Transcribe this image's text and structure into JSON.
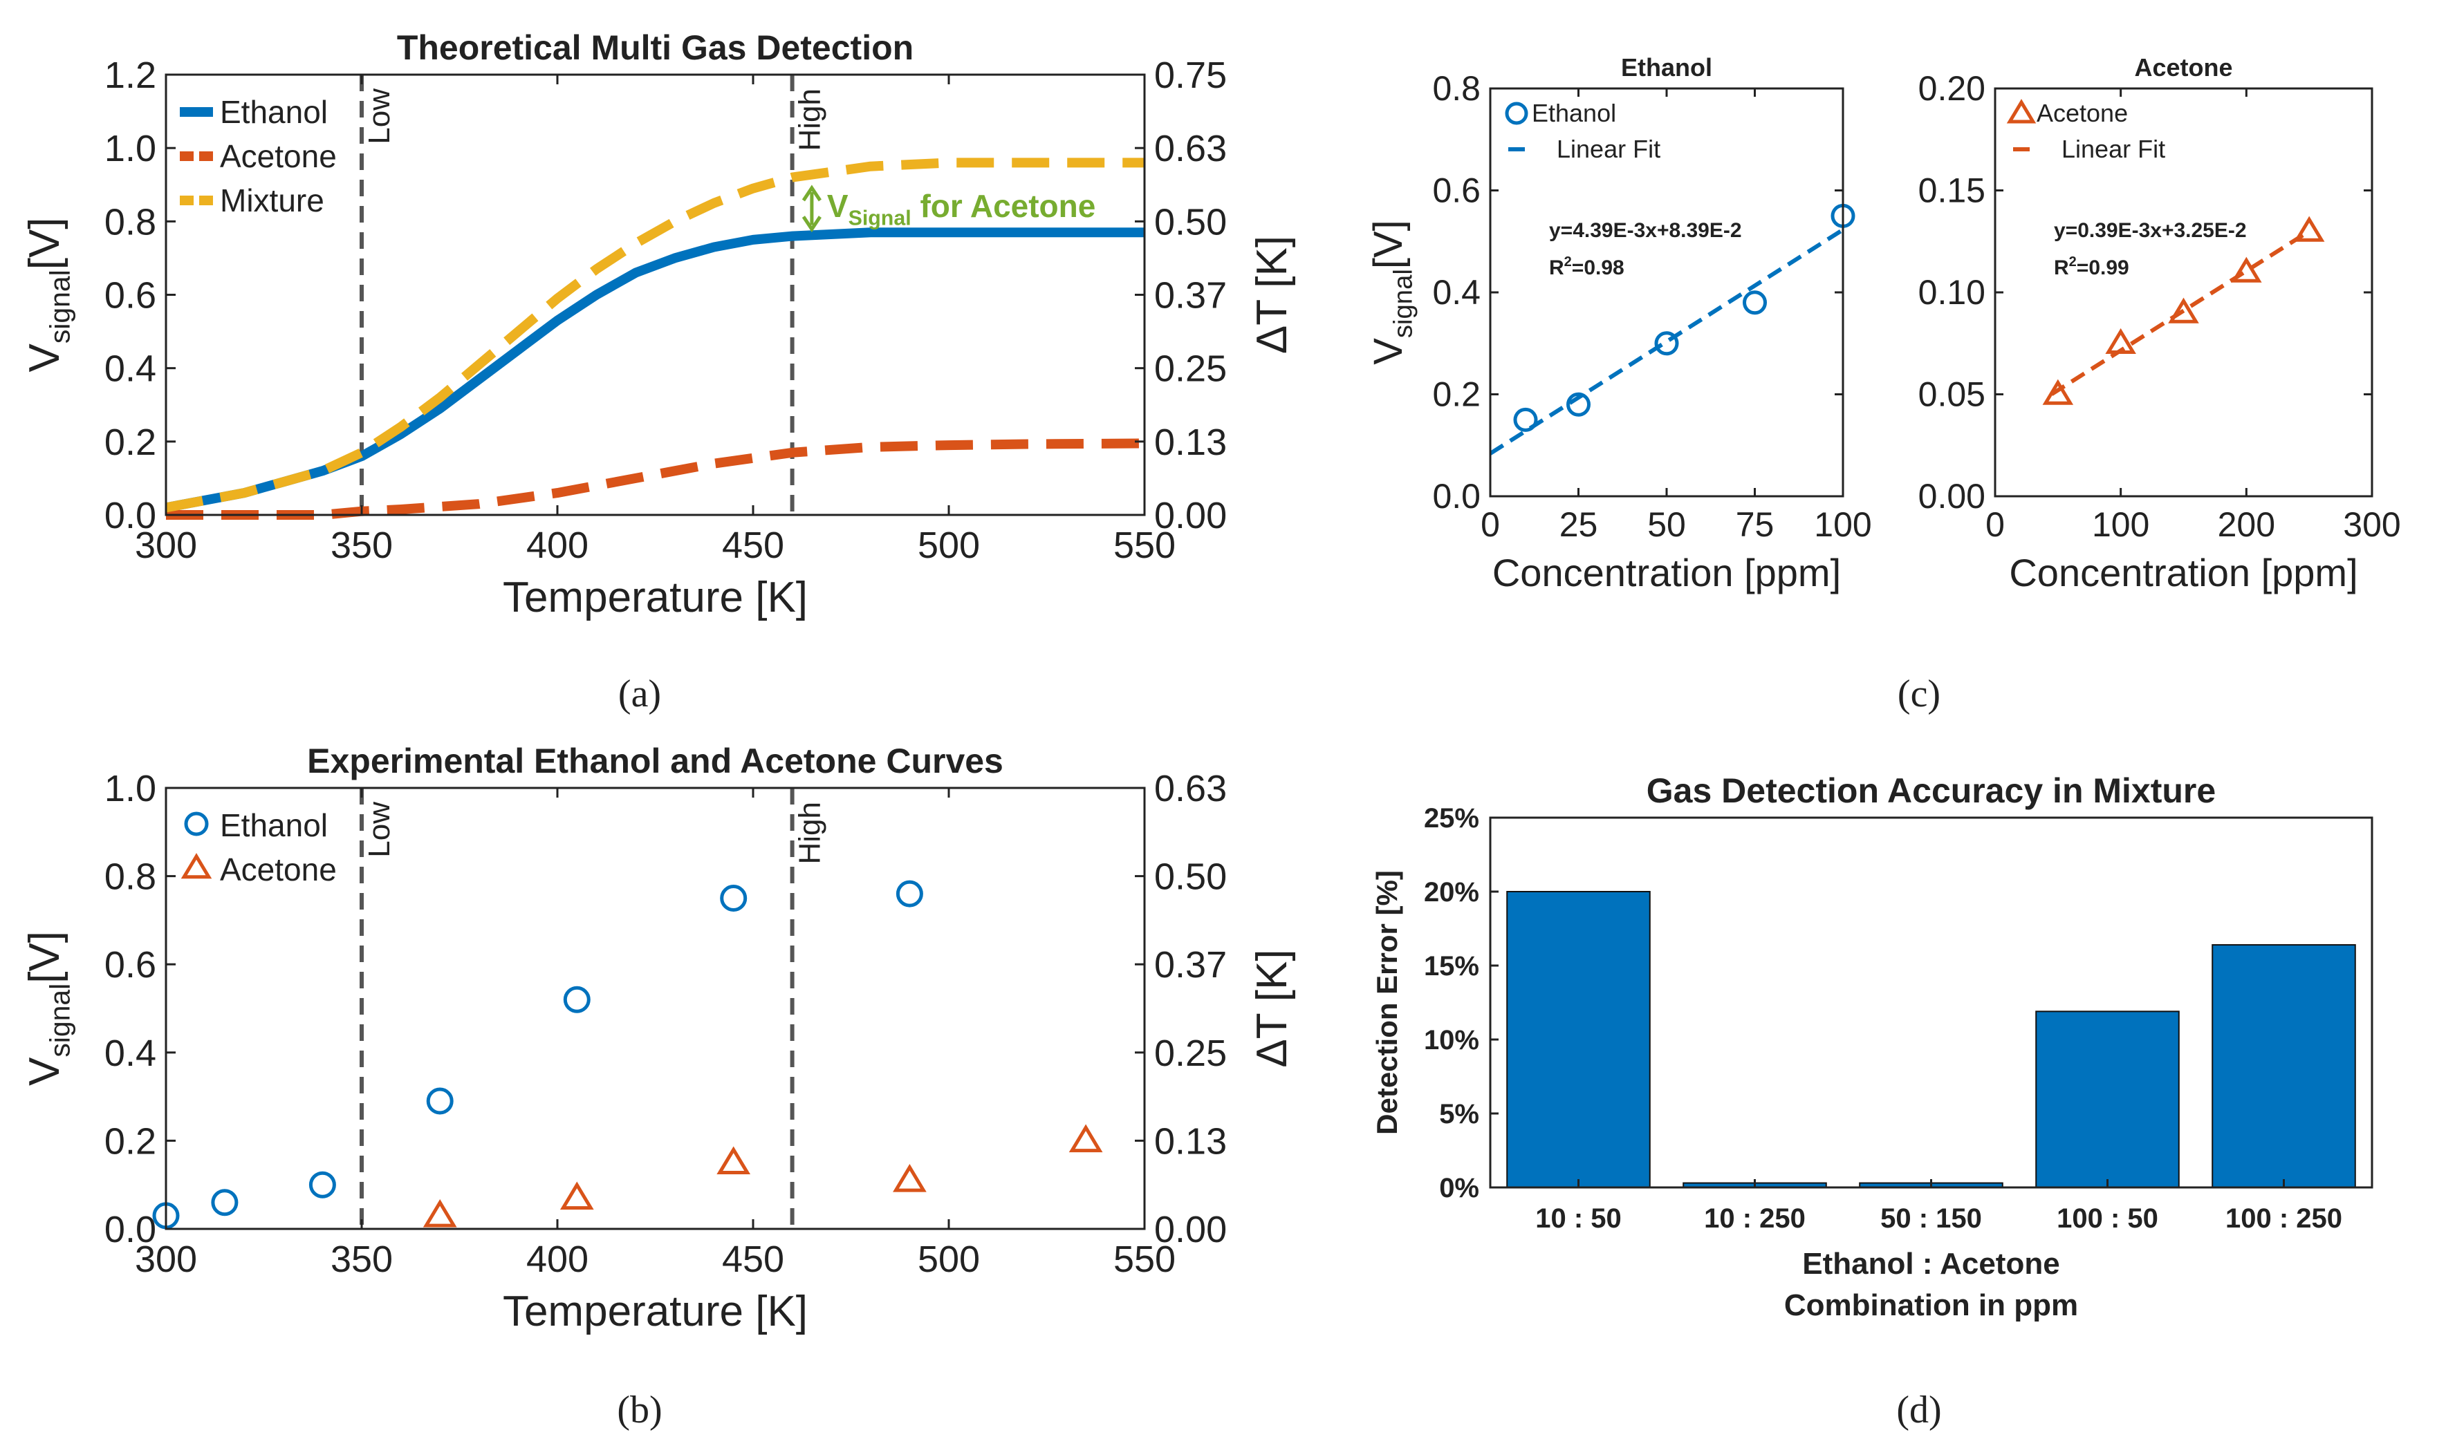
{
  "panel_labels": [
    "(a)",
    "(b)",
    "(c)",
    "(d)"
  ],
  "chart_data": [
    {
      "id": "a",
      "type": "line",
      "title": "Theoretical Multi Gas Detection",
      "xlabel": "Temperature [K]",
      "ylabel_main": "V",
      "ylabel_sub": "signal",
      "ylabel_unit": "[V]",
      "y2label": "ΔT [K]",
      "xlim": [
        300,
        550
      ],
      "ylim": [
        0,
        1.2
      ],
      "xticks": [
        300,
        350,
        400,
        450,
        500,
        550
      ],
      "yticks": [
        "0.0",
        "0.2",
        "0.4",
        "0.6",
        "0.8",
        "1.0",
        "1.2"
      ],
      "y2ticks": [
        "0.00",
        "0.13",
        "0.25",
        "0.37",
        "0.50",
        "0.63",
        "0.75"
      ],
      "legend_position": "top-left",
      "vlines": [
        {
          "x": 350,
          "label": "Low"
        },
        {
          "x": 460,
          "label": "High"
        }
      ],
      "annotation": {
        "main": "V",
        "sub": "Signal",
        "rest": " for Acetone",
        "color": "#77ac30"
      },
      "series": [
        {
          "name": "Ethanol",
          "color": "#0072bd",
          "style": "solid",
          "x": [
            300,
            310,
            320,
            330,
            340,
            350,
            360,
            370,
            380,
            390,
            400,
            410,
            420,
            430,
            440,
            450,
            460,
            480,
            500,
            520,
            550
          ],
          "y": [
            0.02,
            0.04,
            0.06,
            0.09,
            0.12,
            0.16,
            0.22,
            0.29,
            0.37,
            0.45,
            0.53,
            0.6,
            0.66,
            0.7,
            0.73,
            0.75,
            0.76,
            0.77,
            0.77,
            0.77,
            0.77
          ]
        },
        {
          "name": "Acetone",
          "color": "#d95319",
          "style": "dashed",
          "x": [
            300,
            320,
            340,
            350,
            360,
            380,
            400,
            420,
            440,
            460,
            480,
            500,
            520,
            550
          ],
          "y": [
            0.0,
            0.0,
            0.0,
            0.01,
            0.015,
            0.03,
            0.06,
            0.1,
            0.14,
            0.17,
            0.185,
            0.19,
            0.193,
            0.195
          ]
        },
        {
          "name": "Mixture",
          "color": "#edb120",
          "style": "dashed",
          "x": [
            300,
            310,
            320,
            330,
            340,
            350,
            360,
            370,
            380,
            390,
            400,
            410,
            420,
            430,
            440,
            450,
            460,
            480,
            500,
            520,
            550
          ],
          "y": [
            0.02,
            0.04,
            0.06,
            0.09,
            0.12,
            0.17,
            0.24,
            0.32,
            0.41,
            0.5,
            0.59,
            0.67,
            0.74,
            0.8,
            0.85,
            0.89,
            0.92,
            0.95,
            0.96,
            0.96,
            0.96
          ]
        }
      ]
    },
    {
      "id": "b",
      "type": "scatter",
      "title": "Experimental Ethanol and Acetone Curves",
      "xlabel": "Temperature [K]",
      "ylabel_main": "V",
      "ylabel_sub": "signal",
      "ylabel_unit": "[V]",
      "y2label": "ΔT [K]",
      "xlim": [
        300,
        550
      ],
      "ylim": [
        0,
        1.0
      ],
      "xticks": [
        300,
        350,
        400,
        450,
        500,
        550
      ],
      "yticks": [
        "0.0",
        "0.2",
        "0.4",
        "0.6",
        "0.8",
        "1.0"
      ],
      "y2ticks": [
        "0.00",
        "0.13",
        "0.25",
        "0.37",
        "0.50",
        "0.63"
      ],
      "legend_position": "top-left",
      "vlines": [
        {
          "x": 350,
          "label": "Low"
        },
        {
          "x": 460,
          "label": "High"
        }
      ],
      "series": [
        {
          "name": "Ethanol",
          "color": "#0072bd",
          "marker": "circle",
          "x": [
            300,
            315,
            340,
            370,
            405,
            445,
            490
          ],
          "y": [
            0.03,
            0.06,
            0.1,
            0.29,
            0.52,
            0.75,
            0.76
          ]
        },
        {
          "name": "Acetone",
          "color": "#d95319",
          "marker": "triangle",
          "x": [
            370,
            405,
            445,
            490,
            535
          ],
          "y": [
            0.03,
            0.07,
            0.15,
            0.11,
            0.2
          ]
        }
      ]
    },
    {
      "id": "c1",
      "type": "scatter",
      "title": "Ethanol",
      "xlabel": "Concentration [ppm]",
      "ylabel_main": "V",
      "ylabel_sub": "signal",
      "ylabel_unit": "[V]",
      "xlim": [
        0,
        100
      ],
      "ylim": [
        0,
        0.8
      ],
      "xticks": [
        0,
        25,
        50,
        75,
        100
      ],
      "yticks": [
        "0.0",
        "0.2",
        "0.4",
        "0.6",
        "0.8"
      ],
      "legend_position": "top-left",
      "equation": "y=4.39E-3x+8.39E-2",
      "r2": "=0.98",
      "color": "#0072bd",
      "marker": "circle",
      "legend": [
        "Ethanol",
        "Linear Fit"
      ],
      "x": [
        10,
        25,
        50,
        75,
        100
      ],
      "y": [
        0.15,
        0.18,
        0.3,
        0.38,
        0.55
      ],
      "fit": {
        "slope": 0.00439,
        "intercept": 0.0839
      }
    },
    {
      "id": "c2",
      "type": "scatter",
      "title": "Acetone",
      "xlabel": "Concentration [ppm]",
      "xlim": [
        0,
        300
      ],
      "ylim": [
        0,
        0.2
      ],
      "xticks": [
        0,
        100,
        200,
        300
      ],
      "yticks": [
        "0.00",
        "0.05",
        "0.10",
        "0.15",
        "0.20"
      ],
      "legend_position": "top-left",
      "equation": "y=0.39E-3x+3.25E-2",
      "r2": "=0.99",
      "color": "#d95319",
      "marker": "triangle",
      "legend": [
        "Acetone",
        "Linear Fit"
      ],
      "x": [
        50,
        100,
        150,
        200,
        250
      ],
      "y": [
        0.05,
        0.075,
        0.09,
        0.11,
        0.13
      ],
      "fit": {
        "slope": 0.00039,
        "intercept": 0.0325
      }
    },
    {
      "id": "d",
      "type": "bar",
      "title": "Gas Detection Accuracy in Mixture",
      "xlabel": "Ethanol : Acetone",
      "xlabel2": "Combination in ppm",
      "ylabel": "Detection Error [%]",
      "ylim": [
        0,
        25
      ],
      "yticks": [
        "0%",
        "5%",
        "10%",
        "15%",
        "20%",
        "25%"
      ],
      "categories": [
        "10 : 50",
        "10 : 250",
        "50 : 150",
        "100 : 50",
        "100 : 250"
      ],
      "values": [
        20,
        0.3,
        0.3,
        11.9,
        16.4
      ],
      "color": "#0072bd"
    }
  ]
}
